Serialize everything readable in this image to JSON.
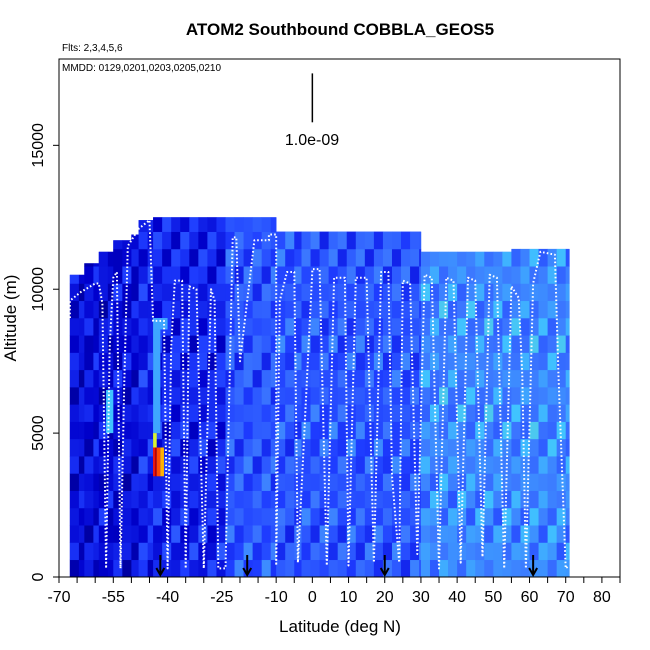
{
  "chart_data": {
    "type": "heatmap",
    "title": "ATOM2 Southbound COBBLA_GEOS5",
    "flights_label": "Flts: 2,3,4,5,6",
    "dates_label": "MMDD: 0129,0201,0203,0205,0210",
    "scale_label": "1.0e-09",
    "xlabel": "Latitude (deg N)",
    "ylabel": "Altitude (m)",
    "xlim": [
      -70,
      85
    ],
    "ylim": [
      0,
      18000
    ],
    "x_ticks": [
      "-70",
      "-55",
      "-40",
      "-25",
      "-10",
      "0",
      "10",
      "20",
      "30",
      "40",
      "50",
      "60",
      "70",
      "80"
    ],
    "x_tick_values": [
      -70,
      -55,
      -40,
      -25,
      -10,
      0,
      10,
      20,
      30,
      40,
      50,
      60,
      70,
      80
    ],
    "x_minor_ticks": [
      -65,
      -60,
      -50,
      -45,
      -35,
      -30,
      -20,
      -15,
      -5,
      5,
      15,
      25,
      35,
      45,
      55,
      65,
      75,
      85
    ],
    "y_ticks": [
      "0",
      "5000",
      "10000",
      "15000"
    ],
    "y_tick_values": [
      0,
      5000,
      10000,
      15000
    ],
    "data_extent": [
      -67,
      71
    ],
    "model_columns": [
      {
        "x": [
          -67,
          -63
        ],
        "top": 10500
      },
      {
        "x": [
          -63,
          -59
        ],
        "top": 10900
      },
      {
        "x": [
          -59,
          -55
        ],
        "top": 11300
      },
      {
        "x": [
          -55,
          -50
        ],
        "top": 11700
      },
      {
        "x": [
          -50,
          -48
        ],
        "top": 11900
      },
      {
        "x": [
          -48,
          -44
        ],
        "top": 12400
      },
      {
        "x": [
          -44,
          -24
        ],
        "top": 12500
      },
      {
        "x": [
          -24,
          -10
        ],
        "top": 12500
      },
      {
        "x": [
          -10,
          -3
        ],
        "top": 12000
      },
      {
        "x": [
          -3,
          30
        ],
        "top": 12000
      },
      {
        "x": [
          30,
          55
        ],
        "top": 11300
      },
      {
        "x": [
          55,
          71
        ],
        "top": 11400
      }
    ],
    "color_scale": [
      "#00008b",
      "#0000cd",
      "#1e3cff",
      "#3c78ff",
      "#40c4ff",
      "#ffff00",
      "#ff7f00",
      "#ff0000",
      "#8b0000"
    ],
    "background_field": [
      {
        "x": [
          -67,
          -48
        ],
        "y": [
          0,
          12000
        ],
        "value": 0.15
      },
      {
        "x": [
          -48,
          -24
        ],
        "y": [
          0,
          12500
        ],
        "value": 0.2
      },
      {
        "x": [
          -24,
          30
        ],
        "y": [
          0,
          12000
        ],
        "value": 0.3
      },
      {
        "x": [
          30,
          71
        ],
        "y": [
          0,
          11400
        ],
        "value": 0.4
      }
    ],
    "hotspots": [
      {
        "x": [
          -44,
          -40
        ],
        "y": [
          8600,
          9000
        ],
        "value": 0.45
      },
      {
        "x": [
          -44,
          -42
        ],
        "y": [
          5000,
          8600
        ],
        "value": 0.45
      },
      {
        "x": [
          -57,
          -55
        ],
        "y": [
          5000,
          6500
        ],
        "value": 0.5
      },
      {
        "x": [
          -44,
          -43
        ],
        "y": [
          4500,
          5000
        ],
        "value": 0.6
      },
      {
        "x": [
          -44,
          -43.5
        ],
        "y": [
          3500,
          4500
        ],
        "value": 0.85
      },
      {
        "x": [
          -43.5,
          -43
        ],
        "y": [
          3500,
          4500
        ],
        "value": 0.95
      },
      {
        "x": [
          -43,
          -42
        ],
        "y": [
          3500,
          4500
        ],
        "value": 0.8
      },
      {
        "x": [
          -42,
          -41
        ],
        "y": [
          3500,
          4500
        ],
        "value": 0.7
      }
    ],
    "flight_track": [
      [
        -67,
        9000
      ],
      [
        -67,
        9600
      ],
      [
        -64,
        9900
      ],
      [
        -60,
        10200
      ],
      [
        -59,
        10200
      ],
      [
        -58,
        9500
      ],
      [
        -57,
        300
      ],
      [
        -56,
        8000
      ],
      [
        -55,
        10400
      ],
      [
        -54,
        10600
      ],
      [
        -53,
        300
      ],
      [
        -52,
        6500
      ],
      [
        -51,
        11500
      ],
      [
        -48,
        12100
      ],
      [
        -46,
        12300
      ],
      [
        -45,
        12400
      ],
      [
        -44,
        8900
      ],
      [
        -41,
        8900
      ],
      [
        -40,
        300
      ],
      [
        -39,
        8000
      ],
      [
        -38,
        10300
      ],
      [
        -36,
        10300
      ],
      [
        -35,
        300
      ],
      [
        -34,
        10100
      ],
      [
        -32,
        10000
      ],
      [
        -30,
        300
      ],
      [
        -28,
        10000
      ],
      [
        -27,
        9600
      ],
      [
        -26,
        300
      ],
      [
        -24,
        300
      ],
      [
        -22,
        11800
      ],
      [
        -21,
        11800
      ],
      [
        -20,
        7500
      ],
      [
        -16,
        11700
      ],
      [
        -12,
        11700
      ],
      [
        -12,
        11900
      ],
      [
        -10,
        11900
      ],
      [
        -10,
        400
      ],
      [
        -9,
        9600
      ],
      [
        -7,
        10600
      ],
      [
        -5,
        10600
      ],
      [
        -4,
        500
      ],
      [
        0,
        10700
      ],
      [
        2,
        10700
      ],
      [
        4,
        400
      ],
      [
        6,
        10400
      ],
      [
        9,
        10400
      ],
      [
        10,
        400
      ],
      [
        12,
        10400
      ],
      [
        15,
        10400
      ],
      [
        17,
        500
      ],
      [
        19,
        10600
      ],
      [
        21,
        10600
      ],
      [
        22,
        3500
      ],
      [
        24,
        500
      ],
      [
        25,
        10300
      ],
      [
        27,
        10200
      ],
      [
        29,
        800
      ],
      [
        31,
        10500
      ],
      [
        33,
        10400
      ],
      [
        35,
        300
      ],
      [
        37,
        10400
      ],
      [
        39,
        10300
      ],
      [
        41,
        500
      ],
      [
        43,
        10400
      ],
      [
        45,
        10300
      ],
      [
        47,
        700
      ],
      [
        49,
        10500
      ],
      [
        51,
        10400
      ],
      [
        53,
        300
      ],
      [
        55,
        10100
      ],
      [
        57,
        9700
      ],
      [
        58,
        7000
      ],
      [
        59,
        300
      ],
      [
        61,
        10200
      ],
      [
        63,
        11300
      ],
      [
        67,
        11200
      ],
      [
        68,
        7000
      ],
      [
        70,
        300
      ],
      [
        71,
        400
      ]
    ],
    "scale_bar": {
      "x": 0,
      "y_from": 15800,
      "y_to": 17500
    },
    "arrows_at": [
      -42,
      -18,
      20,
      61
    ],
    "grid": false,
    "legend": "none"
  }
}
